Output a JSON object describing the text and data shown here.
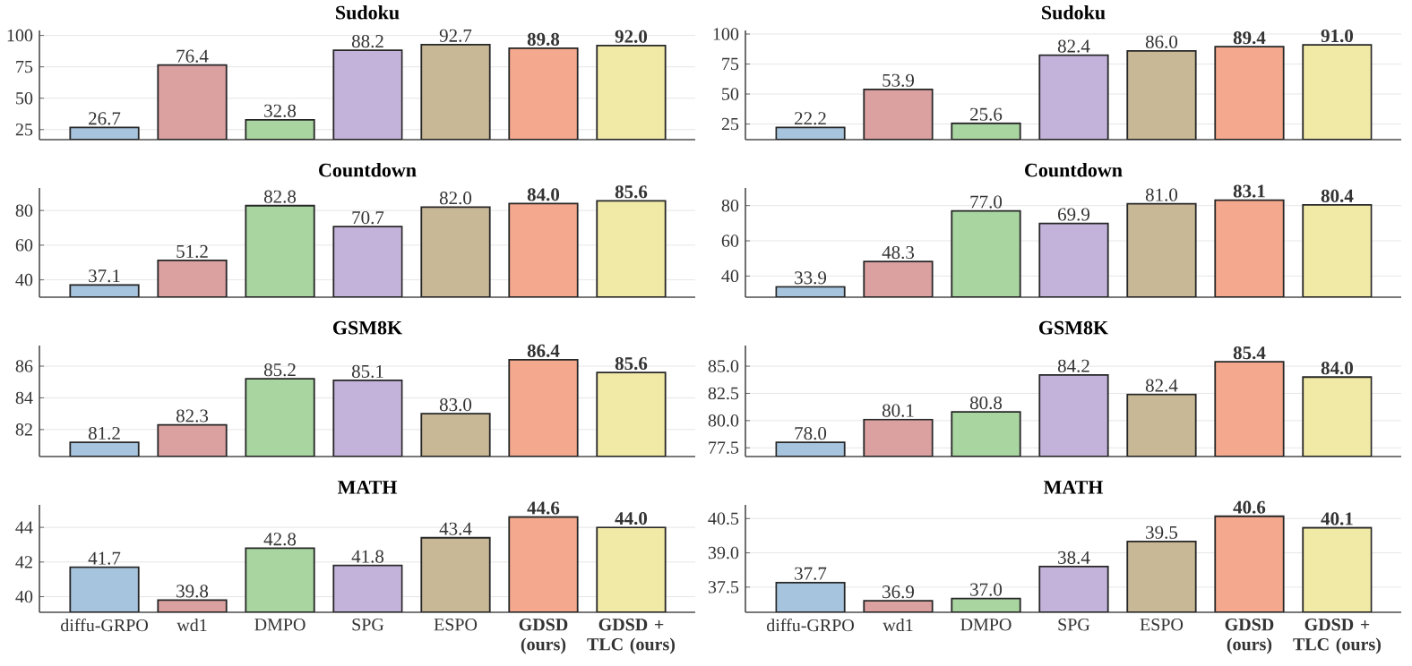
{
  "chart_data": [
    {
      "type": "bar",
      "title": "Sudoku",
      "categories": [
        null,
        null,
        null,
        null,
        null,
        null,
        null
      ],
      "values": [
        26.7,
        76.4,
        32.8,
        88.2,
        92.7,
        89.8,
        92.0
      ],
      "value_labels": [
        "26.7",
        "76.4",
        "32.8",
        "88.2",
        "92.7",
        "**89.8**",
        "**92.0**"
      ],
      "colors": [
        "#a6c4de",
        "#dba0a0",
        "#a8d5a0",
        "#c3b3da",
        "#c8b896",
        "#f4a98e",
        "#f1eaa6"
      ],
      "ylim": [
        17,
        104
      ],
      "yticks": [
        25,
        50,
        75,
        100
      ],
      "grid": "y"
    },
    {
      "type": "bar",
      "title": "Sudoku",
      "categories": [
        null,
        null,
        null,
        null,
        null,
        null,
        null
      ],
      "values": [
        22.2,
        53.9,
        25.6,
        82.4,
        86.0,
        89.4,
        91.0
      ],
      "value_labels": [
        "22.2",
        "53.9",
        "25.6",
        "82.4",
        "86.0",
        "**89.4**",
        "**91.0**"
      ],
      "colors": [
        "#a6c4de",
        "#dba0a0",
        "#a8d5a0",
        "#c3b3da",
        "#c8b896",
        "#f4a98e",
        "#f1eaa6"
      ],
      "ylim": [
        12,
        103
      ],
      "yticks": [
        25,
        50,
        75,
        100
      ],
      "grid": "y"
    },
    {
      "type": "bar",
      "title": "Countdown",
      "categories": [
        null,
        null,
        null,
        null,
        null,
        null,
        null
      ],
      "values": [
        37.1,
        51.2,
        82.8,
        70.7,
        82.0,
        84.0,
        85.6
      ],
      "value_labels": [
        "37.1",
        "51.2",
        "82.8",
        "70.7",
        "82.0",
        "**84.0**",
        "**85.6**"
      ],
      "colors": [
        "#a6c4de",
        "#dba0a0",
        "#a8d5a0",
        "#c3b3da",
        "#c8b896",
        "#f4a98e",
        "#f1eaa6"
      ],
      "ylim": [
        30,
        93
      ],
      "yticks": [
        40,
        60,
        80
      ],
      "grid": "y"
    },
    {
      "type": "bar",
      "title": "Countdown",
      "categories": [
        null,
        null,
        null,
        null,
        null,
        null,
        null
      ],
      "values": [
        33.9,
        48.3,
        77.0,
        69.9,
        81.0,
        83.1,
        80.4
      ],
      "value_labels": [
        "33.9",
        "48.3",
        "77.0",
        "69.9",
        "81.0",
        "**83.1**",
        "**80.4**"
      ],
      "colors": [
        "#a6c4de",
        "#dba0a0",
        "#a8d5a0",
        "#c3b3da",
        "#c8b896",
        "#f4a98e",
        "#f1eaa6"
      ],
      "ylim": [
        28,
        90
      ],
      "yticks": [
        40,
        60,
        80
      ],
      "grid": "y"
    },
    {
      "type": "bar",
      "title": "GSM8K",
      "categories": [
        null,
        null,
        null,
        null,
        null,
        null,
        null
      ],
      "values": [
        81.2,
        82.3,
        85.2,
        85.1,
        83.0,
        86.4,
        85.6
      ],
      "value_labels": [
        "81.2",
        "82.3",
        "85.2",
        "85.1",
        "83.0",
        "**86.4**",
        "**85.6**"
      ],
      "colors": [
        "#a6c4de",
        "#dba0a0",
        "#a8d5a0",
        "#c3b3da",
        "#c8b896",
        "#f4a98e",
        "#f1eaa6"
      ],
      "ylim": [
        80.3,
        87.3
      ],
      "yticks": [
        82,
        84,
        86
      ],
      "grid": "y"
    },
    {
      "type": "bar",
      "title": "GSM8K",
      "categories": [
        null,
        null,
        null,
        null,
        null,
        null,
        null
      ],
      "values": [
        78.0,
        80.1,
        80.8,
        84.2,
        82.4,
        85.4,
        84.0
      ],
      "value_labels": [
        "78.0",
        "80.1",
        "80.8",
        "84.2",
        "82.4",
        "**85.4**",
        "**84.0**"
      ],
      "colors": [
        "#a6c4de",
        "#dba0a0",
        "#a8d5a0",
        "#c3b3da",
        "#c8b896",
        "#f4a98e",
        "#f1eaa6"
      ],
      "ylim": [
        76.7,
        86.9
      ],
      "yticks": [
        77.5,
        {
          "value": 80,
          "label": "80.0"
        },
        82.5,
        {
          "value": 85,
          "label": "85.0"
        }
      ],
      "grid": "y"
    },
    {
      "type": "bar",
      "title": "MATH",
      "categories": [
        "diffu-GRPO",
        "wd1",
        "DMPO",
        "SPG",
        "ESPO",
        "**GDSD (ours)**",
        "**GDSD + TLC (ours)**"
      ],
      "values": [
        41.7,
        39.8,
        42.8,
        41.8,
        43.4,
        44.6,
        44.0
      ],
      "value_labels": [
        "41.7",
        "39.8",
        "42.8",
        "41.8",
        "43.4",
        "**44.6**",
        "**44.0**"
      ],
      "colors": [
        "#a6c4de",
        "#dba0a0",
        "#a8d5a0",
        "#c3b3da",
        "#c8b896",
        "#f4a98e",
        "#f1eaa6"
      ],
      "ylim": [
        39.1,
        45.3
      ],
      "yticks": [
        40,
        42,
        44
      ],
      "grid": "y"
    },
    {
      "type": "bar",
      "title": "MATH",
      "categories": [
        "diffu-GRPO",
        "wd1",
        "DMPO",
        "SPG",
        "ESPO",
        "**GDSD (ours)**",
        "**GDSD + TLC (ours)**"
      ],
      "values": [
        37.7,
        36.9,
        37.0,
        38.4,
        39.5,
        40.6,
        40.1
      ],
      "value_labels": [
        "37.7",
        "36.9",
        "37.0",
        "38.4",
        "39.5",
        "**40.6**",
        "**40.1**"
      ],
      "colors": [
        "#a6c4de",
        "#dba0a0",
        "#a8d5a0",
        "#c3b3da",
        "#c8b896",
        "#f4a98e",
        "#f1eaa6"
      ],
      "ylim": [
        36.4,
        41.1
      ],
      "yticks": [
        37.5,
        {
          "value": 39,
          "label": "39.0"
        },
        40.5
      ],
      "grid": "y"
    }
  ]
}
